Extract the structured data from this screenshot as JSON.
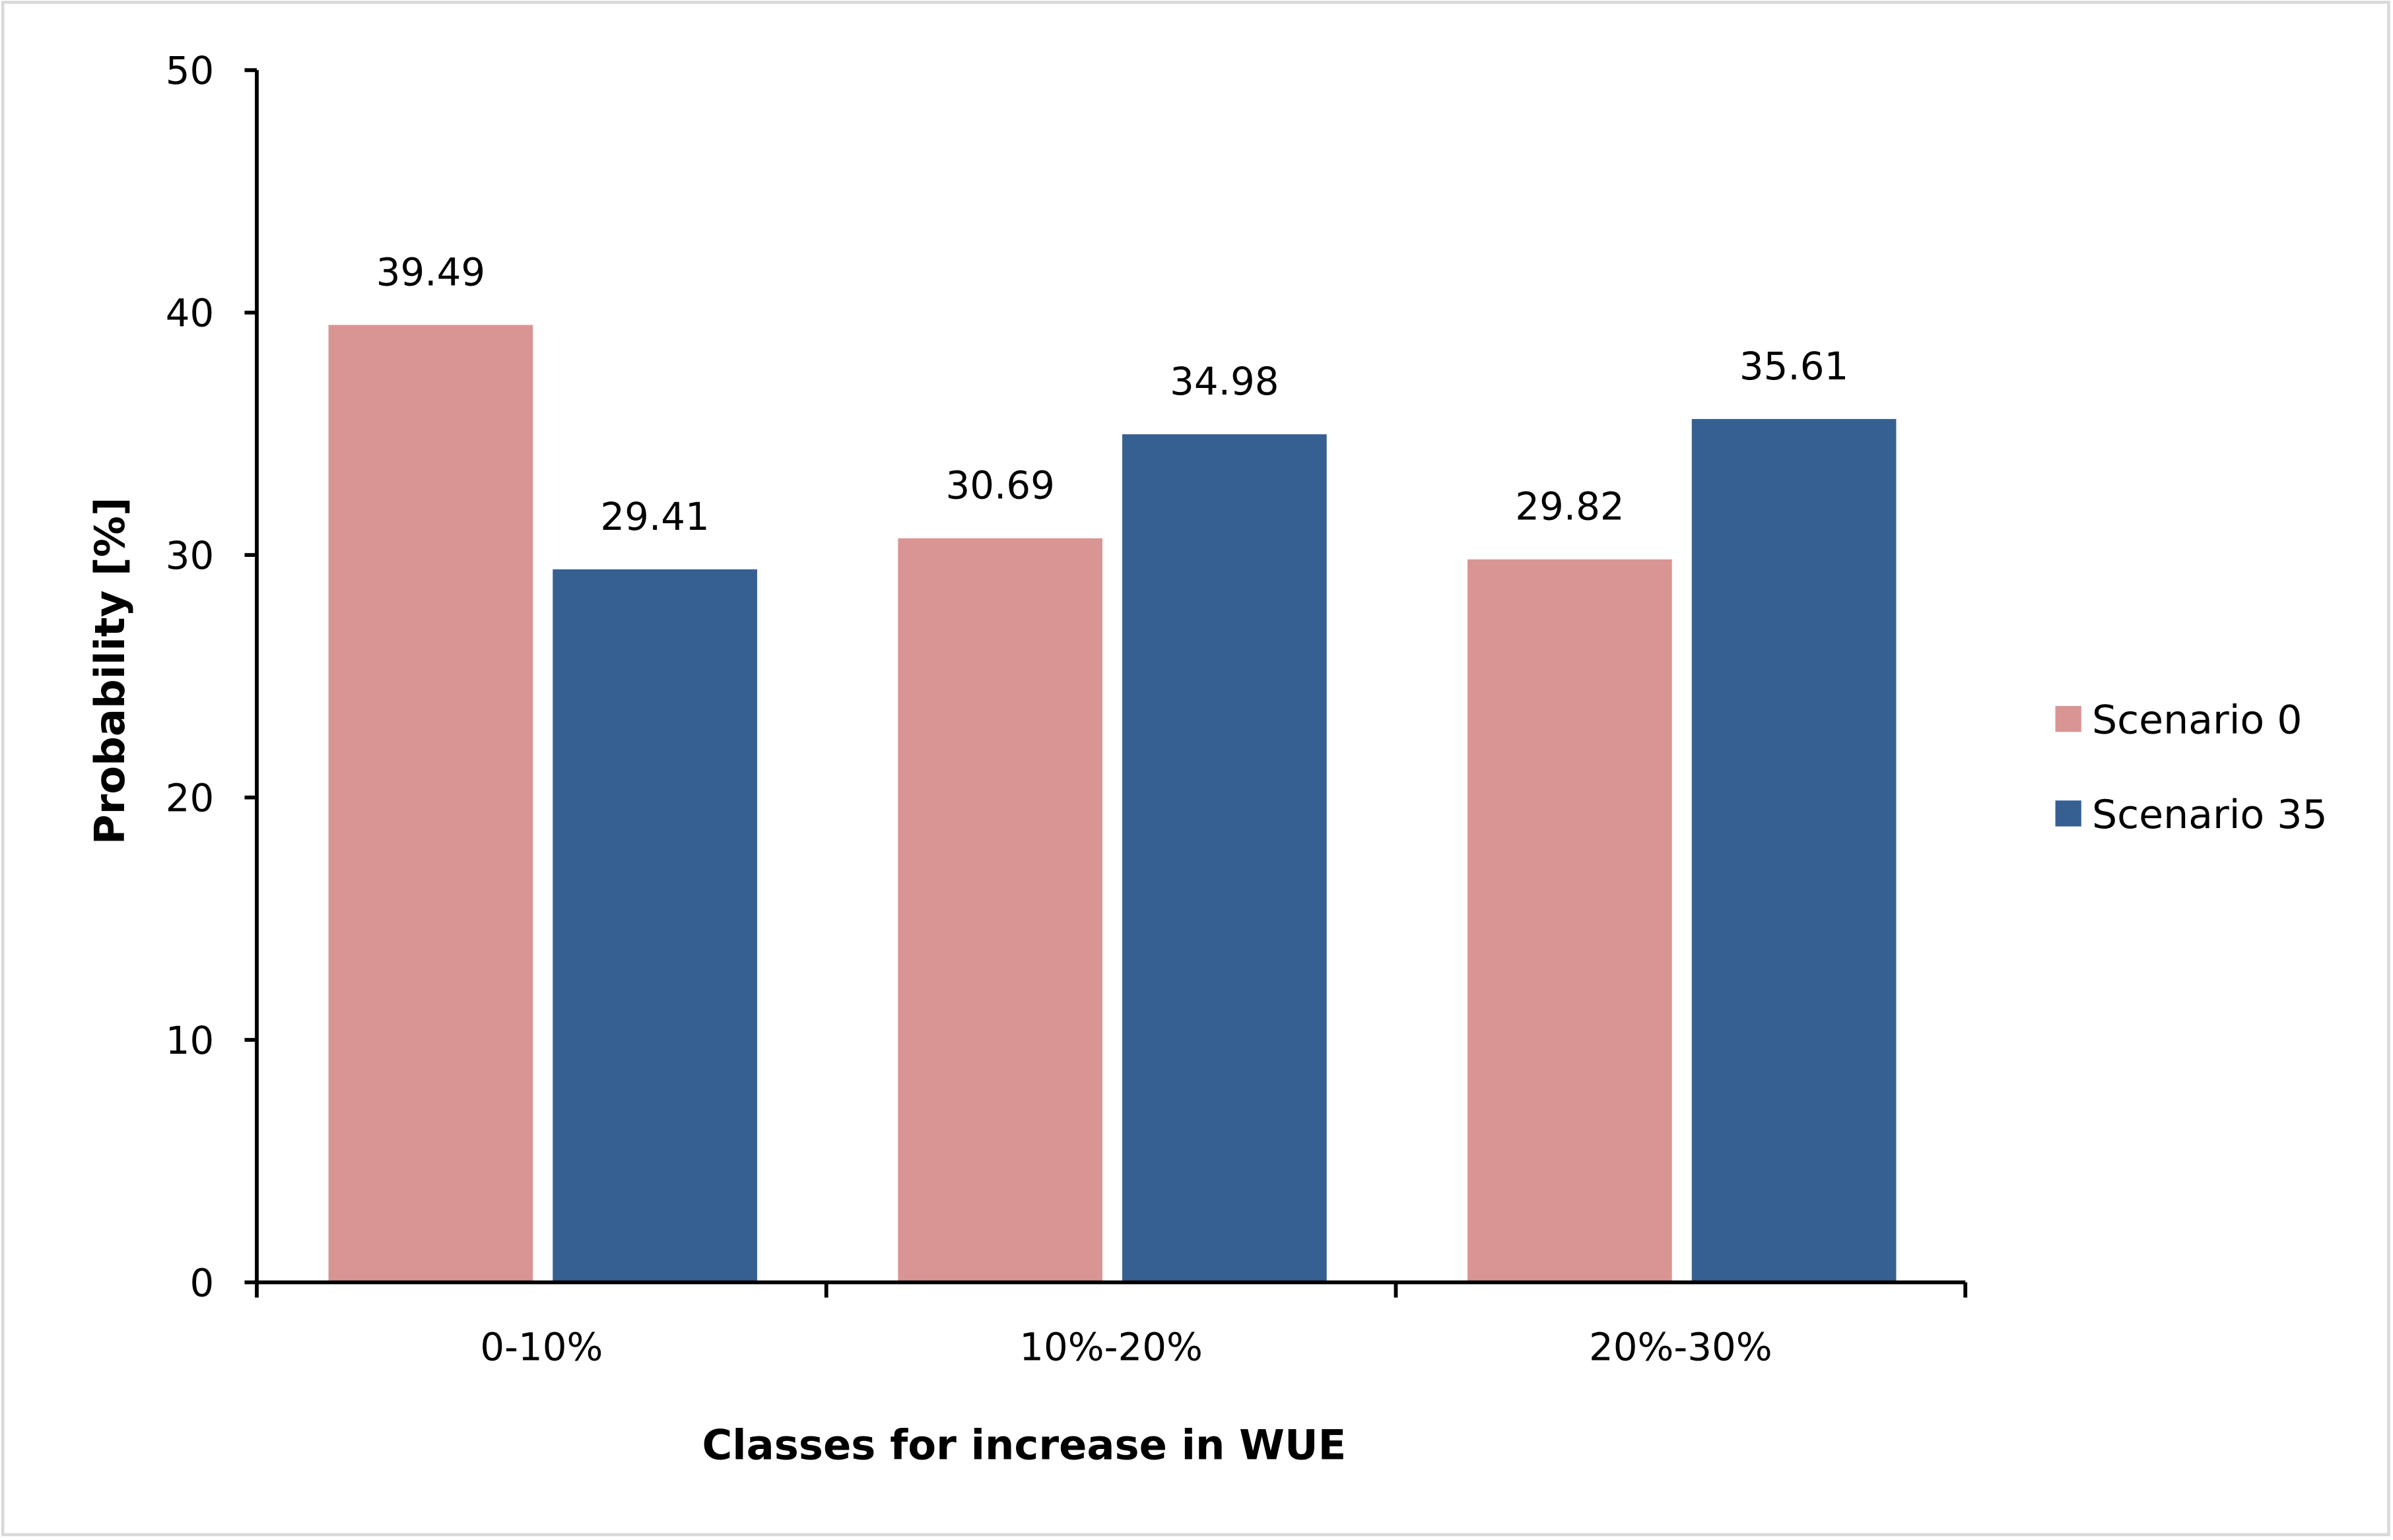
{
  "chart_data": {
    "type": "bar",
    "title": "",
    "xlabel": "Classes for increase in WUE",
    "ylabel": "Probability [%]",
    "categories": [
      "0-10%",
      "10%-20%",
      "20%-30%"
    ],
    "series": [
      {
        "name": "Scenario 0",
        "values": [
          39.49,
          30.69,
          29.82
        ],
        "color": "#D99594",
        "labels": [
          "39.49",
          "30.69",
          "29.82"
        ]
      },
      {
        "name": "Scenario 35",
        "values": [
          29.41,
          34.98,
          35.61
        ],
        "color": "#376092",
        "labels": [
          "29.41",
          "34.98",
          "35.61"
        ]
      }
    ],
    "ylim": [
      0,
      50
    ],
    "yticks": [
      "0",
      "10",
      "20",
      "30",
      "40",
      "50"
    ],
    "grid": false,
    "legend": "right"
  }
}
